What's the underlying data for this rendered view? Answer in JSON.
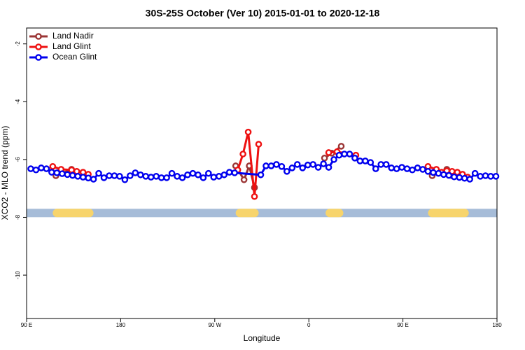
{
  "chart_data": {
    "type": "line",
    "title": "30S-25S October (Ver 10)   2015-01-01 to 2020-12-18",
    "x_label": "Longitude",
    "y_label": "XCO2 - MLO trend (ppm)",
    "xlim": [
      90,
      540
    ],
    "ylim": [
      -11.5,
      -1.45
    ],
    "xticks": [
      {
        "value": 90,
        "label": "90 E"
      },
      180,
      {
        "value": 270,
        "label": "90 W"
      },
      {
        "value": 360,
        "label": "0"
      },
      {
        "value": 450,
        "label": "90 E"
      },
      {
        "value": 540,
        "label": "180"
      }
    ],
    "yticks": [
      -2,
      -4,
      -6,
      -8,
      -10
    ],
    "legend": "top-left",
    "strip": {
      "y": -7.85,
      "ocean_color": "#a6bcd8",
      "land_color": "#f7d46c",
      "land": [
        [
          115,
          154
        ],
        [
          290,
          312
        ],
        [
          376,
          393
        ],
        [
          474,
          513
        ]
      ]
    },
    "series": [
      {
        "name": "Land Nadir",
        "color": "#9b3535",
        "x": [
          118,
          133,
          null,
          290,
          298,
          303,
          308,
          null,
          375,
          382,
          391,
          null,
          478,
          492,
          497
        ],
        "values": [
          -6.56,
          -6.34,
          null,
          -6.22,
          -6.7,
          -6.22,
          -6.97,
          null,
          -5.95,
          -5.78,
          -5.54,
          null,
          -6.56,
          -6.34,
          -6.56
        ]
      },
      {
        "name": "Land Glint",
        "color": "#ee1111",
        "x": [
          115,
          123,
          133,
          138,
          144,
          149,
          null,
          292,
          297,
          302,
          308,
          312,
          null,
          379,
          387,
          405,
          null,
          474,
          482,
          487,
          492,
          497,
          502,
          507,
          512
        ],
        "values": [
          -6.24,
          -6.34,
          -6.36,
          -6.41,
          -6.44,
          -6.51,
          null,
          -6.36,
          -5.81,
          -5.05,
          -7.28,
          -5.47,
          null,
          -5.76,
          -5.73,
          -5.85,
          null,
          -6.24,
          -6.34,
          -6.44,
          -6.39,
          -6.41,
          -6.44,
          -6.51,
          -6.61
        ]
      },
      {
        "name": "Ocean Glint",
        "color": "#0000ee",
        "x": [
          94,
          99,
          104,
          109,
          114,
          119,
          124,
          129,
          134,
          139,
          144,
          149,
          154,
          159,
          164,
          169,
          174,
          179,
          184,
          189,
          194,
          199,
          204,
          209,
          214,
          219,
          224,
          229,
          234,
          239,
          244,
          249,
          254,
          259,
          264,
          269,
          274,
          279,
          284,
          289,
          314,
          319,
          324,
          329,
          334,
          339,
          344,
          349,
          354,
          359,
          364,
          369,
          374,
          379,
          384,
          389,
          394,
          399,
          404,
          409,
          414,
          419,
          424,
          429,
          434,
          439,
          444,
          449,
          454,
          459,
          464,
          469,
          474,
          479,
          484,
          489,
          494,
          499,
          504,
          509,
          514,
          519,
          524,
          529,
          534,
          539
        ],
        "values": [
          -6.32,
          -6.36,
          -6.29,
          -6.32,
          -6.44,
          -6.46,
          -6.49,
          -6.52,
          -6.55,
          -6.58,
          -6.61,
          -6.64,
          -6.68,
          -6.48,
          -6.63,
          -6.56,
          -6.56,
          -6.58,
          -6.7,
          -6.56,
          -6.46,
          -6.53,
          -6.58,
          -6.61,
          -6.58,
          -6.63,
          -6.63,
          -6.48,
          -6.58,
          -6.63,
          -6.53,
          -6.48,
          -6.53,
          -6.63,
          -6.48,
          -6.61,
          -6.58,
          -6.53,
          -6.44,
          -6.46,
          -6.53,
          -6.22,
          -6.22,
          -6.17,
          -6.24,
          -6.41,
          -6.29,
          -6.17,
          -6.29,
          -6.19,
          -6.17,
          -6.27,
          -6.15,
          -6.27,
          -6.0,
          -5.85,
          -5.81,
          -5.81,
          -5.95,
          -6.05,
          -6.05,
          -6.1,
          -6.32,
          -6.17,
          -6.17,
          -6.29,
          -6.32,
          -6.27,
          -6.32,
          -6.36,
          -6.29,
          -6.34,
          -6.41,
          -6.45,
          -6.48,
          -6.52,
          -6.55,
          -6.6,
          -6.62,
          -6.65,
          -6.68,
          -6.48,
          -6.58,
          -6.56,
          -6.58,
          -6.58
        ]
      }
    ]
  }
}
